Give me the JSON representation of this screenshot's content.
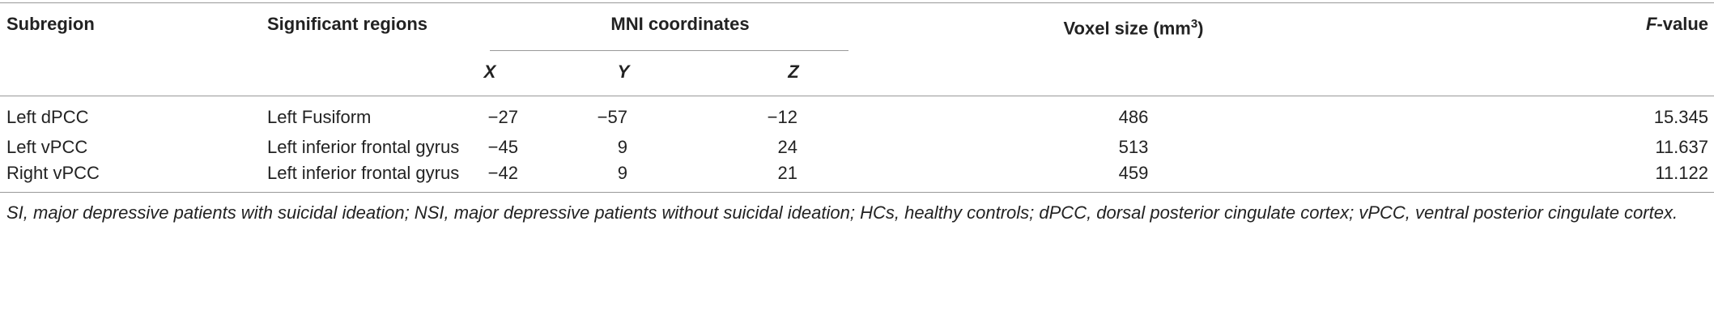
{
  "table": {
    "header": {
      "subregion": "Subregion",
      "regions": "Significant regions",
      "mni": "MNI coordinates",
      "voxel": {
        "text": "Voxel size (mm",
        "sup": "3",
        "after": ")"
      },
      "fvalue": {
        "italic": "F",
        "text": "-value"
      },
      "x": "X",
      "y": "Y",
      "z": "Z"
    },
    "rows": [
      [
        "Left dPCC",
        "Left Fusiform",
        "−27",
        "−57",
        "−12",
        "486",
        "15.345"
      ],
      [
        "Left vPCC",
        "Left inferior frontal gyrus",
        "−45",
        "9",
        "24",
        "513",
        "11.637"
      ],
      [
        "Right vPCC",
        "Left inferior frontal gyrus",
        "−42",
        "9",
        "21",
        "459",
        "11.122"
      ]
    ],
    "footnote": "SI, major depressive patients with suicidal ideation; NSI, major depressive patients without suicidal ideation; HCs, healthy controls; dPCC, dorsal posterior cingulate cortex; vPCC, ventral posterior cingulate cortex."
  }
}
